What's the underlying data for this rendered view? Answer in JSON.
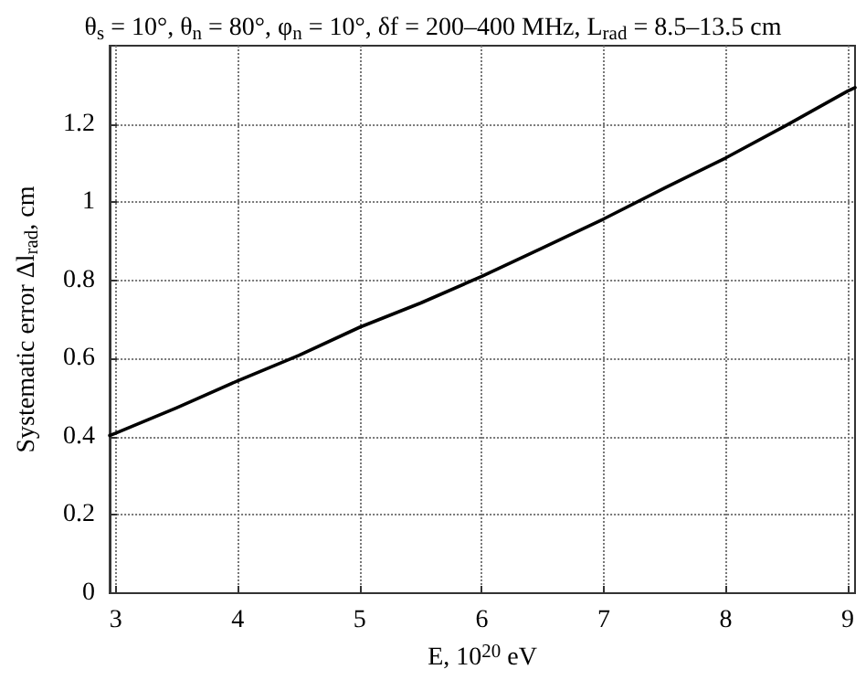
{
  "chart_data": {
    "type": "line",
    "title": "θ$_{s}$ = 10°, θ$_{n}$ = 80°, φ$_{n}$ = 10°, δf = 200–400 MHz, L$_{rad}$ = 8.5–13.5 cm",
    "xlabel": "E, 10$^{20}$ eV",
    "ylabel": "Systematic error Δl$_{rad}$, cm",
    "x": [
      2.95,
      3,
      3.5,
      4,
      4.5,
      5,
      5.5,
      6,
      6.5,
      7,
      7.5,
      8,
      8.5,
      9,
      9.06
    ],
    "series": [
      {
        "color": "#000000",
        "values": [
          0.403,
          0.409,
          0.474,
          0.543,
          0.608,
          0.68,
          0.742,
          0.81,
          0.883,
          0.957,
          1.036,
          1.113,
          1.197,
          1.284,
          1.293
        ]
      }
    ],
    "xlim": [
      2.95,
      9.06
    ],
    "xticks": [
      3,
      4,
      5,
      6,
      7,
      8,
      9
    ],
    "ylim": [
      0,
      1.4
    ],
    "yticks": [
      0,
      0.2,
      0.4,
      0.6,
      0.8,
      1,
      1.2
    ],
    "grid": true,
    "marker": "none",
    "line_style": "solid"
  }
}
